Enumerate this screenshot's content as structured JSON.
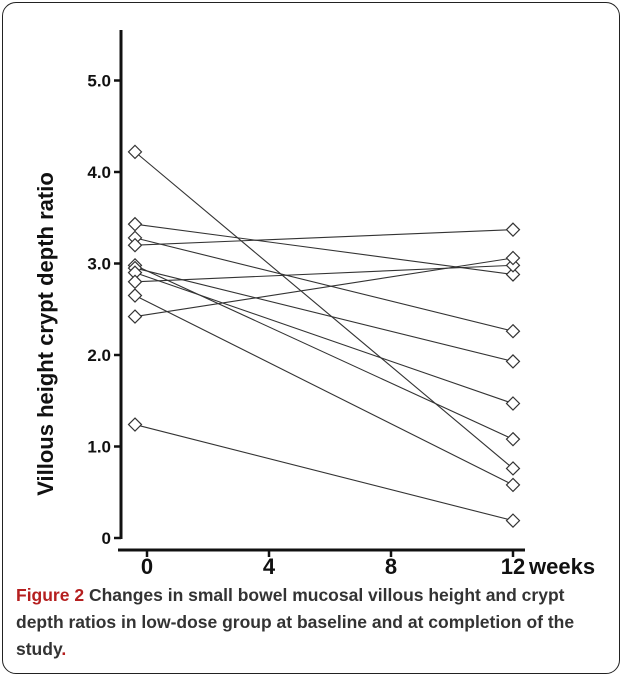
{
  "chart_data": {
    "type": "line",
    "x": [
      0,
      12
    ],
    "xlabel": "weeks",
    "ylabel": "Villous height crypt depth ratio",
    "xlim": [
      0,
      12
    ],
    "ylim": [
      0,
      5.5
    ],
    "x_ticks": [
      "0",
      "4",
      "8",
      "12"
    ],
    "x_tick_values": [
      0,
      4,
      8,
      12
    ],
    "y_ticks": [
      "0",
      "1.0",
      "2.0",
      "3.0",
      "4.0",
      "5.0"
    ],
    "y_tick_values": [
      0,
      1,
      2,
      3,
      4,
      5
    ],
    "marker": "diamond",
    "grid": false,
    "series": [
      {
        "values": [
          4.22,
          0.76
        ]
      },
      {
        "values": [
          3.43,
          2.88
        ]
      },
      {
        "values": [
          3.28,
          2.26
        ]
      },
      {
        "values": [
          3.2,
          3.37
        ]
      },
      {
        "values": [
          2.98,
          1.08
        ]
      },
      {
        "values": [
          2.95,
          1.93
        ]
      },
      {
        "values": [
          2.9,
          1.47
        ]
      },
      {
        "values": [
          2.8,
          2.98
        ]
      },
      {
        "values": [
          2.65,
          0.58
        ]
      },
      {
        "values": [
          2.42,
          3.06
        ]
      },
      {
        "values": [
          1.24,
          0.19
        ]
      }
    ]
  },
  "caption": {
    "label": "Figure 2",
    "text": "Changes in small bowel mucosal villous height and crypt depth ratios in low-dose group at baseline and at completion of the study",
    "end": "."
  }
}
